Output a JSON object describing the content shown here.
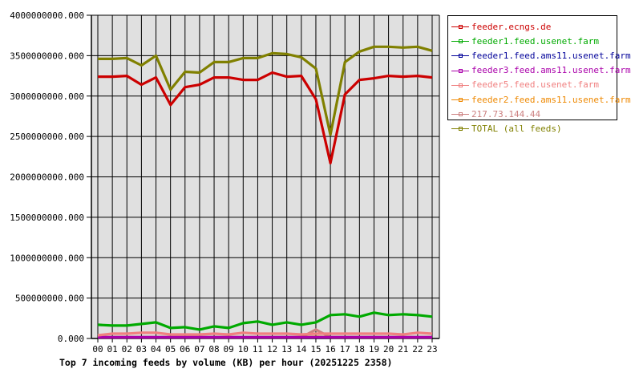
{
  "chart_data": {
    "type": "line",
    "title": "Top 7 incoming feeds by volume (KB) per hour (20251225 2358)",
    "xlabel": "",
    "ylabel": "",
    "ylim": [
      0,
      4000000000
    ],
    "grid": true,
    "legend_position": "right",
    "x": [
      "00",
      "01",
      "02",
      "03",
      "04",
      "05",
      "06",
      "07",
      "08",
      "09",
      "10",
      "11",
      "12",
      "13",
      "14",
      "15",
      "16",
      "17",
      "18",
      "19",
      "20",
      "21",
      "22",
      "23"
    ],
    "y_ticks": [
      "0.000",
      "500000000.000",
      "1000000000.000",
      "1500000000.000",
      "2000000000.000",
      "2500000000.000",
      "3000000000.000",
      "3500000000.000",
      "4000000000.000"
    ],
    "series": [
      {
        "name": "feeder.ecngs.de",
        "color": "#cc0000",
        "values": [
          3240000000,
          3240000000,
          3250000000,
          3140000000,
          3230000000,
          2890000000,
          3110000000,
          3140000000,
          3230000000,
          3230000000,
          3200000000,
          3200000000,
          3290000000,
          3240000000,
          3250000000,
          2960000000,
          2170000000,
          3020000000,
          3200000000,
          3220000000,
          3250000000,
          3240000000,
          3250000000,
          3230000000
        ]
      },
      {
        "name": "feeder1.feed.usenet.farm",
        "color": "#00aa00",
        "values": [
          170000000,
          160000000,
          160000000,
          180000000,
          200000000,
          130000000,
          140000000,
          110000000,
          150000000,
          130000000,
          190000000,
          210000000,
          170000000,
          200000000,
          170000000,
          200000000,
          290000000,
          300000000,
          270000000,
          320000000,
          290000000,
          300000000,
          290000000,
          270000000
        ]
      },
      {
        "name": "feeder1.feed.ams11.usenet.farm",
        "color": "#000099",
        "values": [
          0,
          0,
          0,
          0,
          0,
          0,
          0,
          0,
          0,
          0,
          0,
          0,
          0,
          0,
          0,
          0,
          0,
          0,
          0,
          0,
          0,
          0,
          0,
          0
        ]
      },
      {
        "name": "feeder3.feed.ams11.usenet.farm",
        "color": "#aa00aa",
        "values": [
          0,
          0,
          0,
          0,
          0,
          0,
          0,
          0,
          0,
          0,
          0,
          0,
          0,
          0,
          0,
          0,
          0,
          0,
          0,
          0,
          0,
          0,
          0,
          0
        ]
      },
      {
        "name": "feeder5.feed.usenet.farm",
        "color": "#f08080",
        "values": [
          40000000,
          60000000,
          60000000,
          70000000,
          70000000,
          50000000,
          50000000,
          50000000,
          60000000,
          50000000,
          70000000,
          60000000,
          60000000,
          60000000,
          50000000,
          60000000,
          60000000,
          60000000,
          60000000,
          60000000,
          60000000,
          50000000,
          70000000,
          60000000
        ]
      },
      {
        "name": "feeder2.feed.ams11.usenet.farm",
        "color": "#ee8800",
        "values": [
          10000000,
          10000000,
          10000000,
          10000000,
          10000000,
          10000000,
          10000000,
          10000000,
          10000000,
          10000000,
          10000000,
          10000000,
          10000000,
          10000000,
          10000000,
          20000000,
          10000000,
          10000000,
          10000000,
          10000000,
          10000000,
          10000000,
          10000000,
          10000000
        ]
      },
      {
        "name": "217.73.144.44",
        "color": "#cc8080",
        "values": [
          10000000,
          10000000,
          10000000,
          10000000,
          10000000,
          10000000,
          10000000,
          10000000,
          10000000,
          10000000,
          10000000,
          10000000,
          10000000,
          10000000,
          10000000,
          110000000,
          10000000,
          10000000,
          10000000,
          10000000,
          10000000,
          10000000,
          10000000,
          10000000
        ]
      },
      {
        "name": "TOTAL (all feeds)",
        "color": "#808000",
        "values": [
          3460000000,
          3460000000,
          3470000000,
          3380000000,
          3500000000,
          3080000000,
          3300000000,
          3290000000,
          3420000000,
          3420000000,
          3470000000,
          3470000000,
          3530000000,
          3520000000,
          3480000000,
          3340000000,
          2520000000,
          3420000000,
          3550000000,
          3610000000,
          3610000000,
          3600000000,
          3610000000,
          3560000000
        ]
      }
    ]
  },
  "legend": {
    "items": [
      {
        "label": "feeder.ecngs.de",
        "color": "#cc0000"
      },
      {
        "label": "feeder1.feed.usenet.farm",
        "color": "#00aa00"
      },
      {
        "label": "feeder1.feed.ams11.usenet.farm",
        "color": "#000099"
      },
      {
        "label": "feeder3.feed.ams11.usenet.farm",
        "color": "#aa00aa"
      },
      {
        "label": "feeder5.feed.usenet.farm",
        "color": "#f08080"
      },
      {
        "label": "feeder2.feed.ams11.usenet.farm",
        "color": "#ee8800"
      },
      {
        "label": "217.73.144.44",
        "color": "#cc8080"
      },
      {
        "label": "TOTAL (all feeds)",
        "color": "#808000"
      }
    ]
  },
  "style": {
    "plot_background": "#e0e0e0",
    "grid_color": "#000000"
  }
}
